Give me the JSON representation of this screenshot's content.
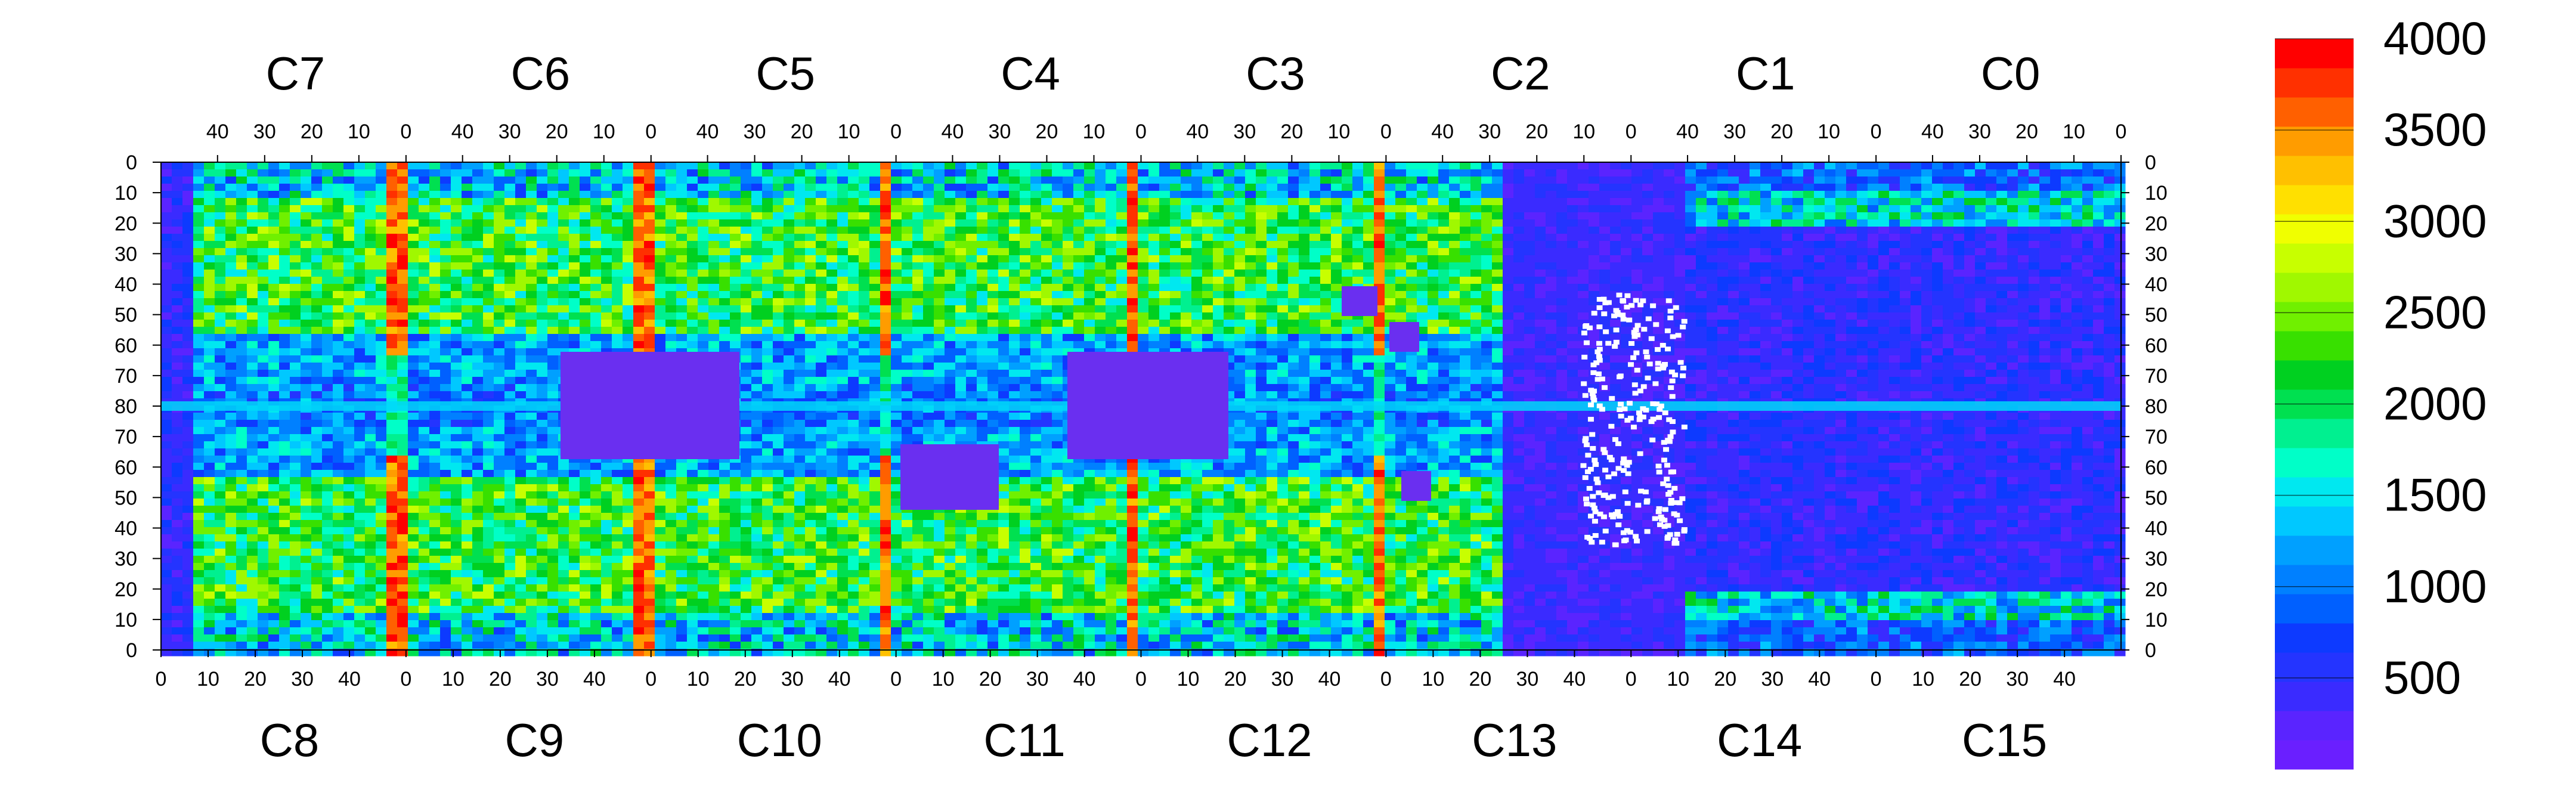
{
  "chart_data": {
    "type": "heatmap",
    "title": "",
    "xlabel": "",
    "ylabel": "",
    "top_chips": [
      "C7",
      "C6",
      "C5",
      "C4",
      "C3",
      "C2",
      "C1",
      "C0"
    ],
    "bottom_chips": [
      "C8",
      "C9",
      "C10",
      "C11",
      "C12",
      "C13",
      "C14",
      "C15"
    ],
    "top_x_ticks": [
      "40",
      "30",
      "20",
      "10",
      "0"
    ],
    "bottom_x_ticks": [
      "0",
      "10",
      "20",
      "30",
      "40"
    ],
    "y_ticks": [
      "0",
      "10",
      "20",
      "30",
      "40",
      "50",
      "60",
      "70",
      "80",
      "70",
      "60",
      "50",
      "40",
      "30",
      "20",
      "10",
      "0"
    ],
    "chip_columns": 52,
    "chip_rows_per_half": 80,
    "colorbar": {
      "min": 0,
      "max": 4000,
      "ticks": [
        "500",
        "1000",
        "1500",
        "2000",
        "2500",
        "3000",
        "3500",
        "4000"
      ],
      "colors": [
        "#6a1fff",
        "#5a24ff",
        "#3a2bff",
        "#2434ff",
        "#0d3aff",
        "#0060ff",
        "#0080ff",
        "#00a0ff",
        "#00c8ff",
        "#00e8f0",
        "#00ffc8",
        "#00f090",
        "#00e050",
        "#00d020",
        "#38e000",
        "#70f000",
        "#a0f800",
        "#c8ff00",
        "#f0ff00",
        "#ffe000",
        "#ffc000",
        "#ff9c00",
        "#ff6000",
        "#ff3000",
        "#ff0000"
      ]
    }
  }
}
